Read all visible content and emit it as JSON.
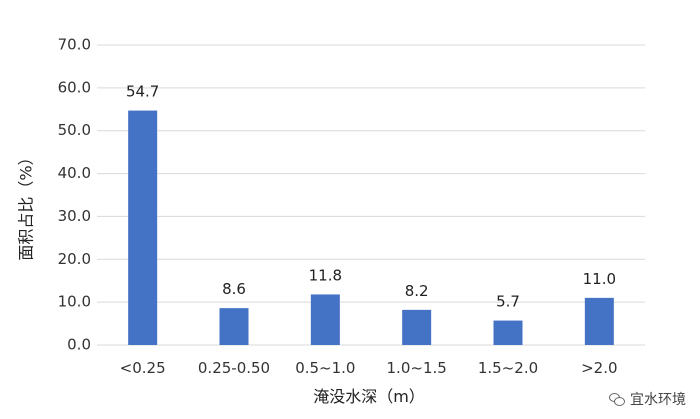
{
  "chart_data": {
    "type": "bar",
    "categories": [
      "<0.25",
      "0.25-0.50",
      "0.5~1.0",
      "1.0~1.5",
      "1.5~2.0",
      ">2.0"
    ],
    "values": [
      54.7,
      8.6,
      11.8,
      8.2,
      5.7,
      11.0
    ],
    "data_labels": [
      "54.7",
      "8.6",
      "11.8",
      "8.2",
      "5.7",
      "11.0"
    ],
    "ylabel": "面积占比（%）",
    "xlabel": "淹没水深（m）",
    "ylim": [
      0,
      70
    ],
    "yticks": [
      "0.0",
      "10.0",
      "20.0",
      "30.0",
      "40.0",
      "50.0",
      "60.0",
      "70.0"
    ],
    "ytick_values": [
      0,
      10,
      20,
      30,
      40,
      50,
      60,
      70
    ],
    "grid": true,
    "bar_color": "#4472C4",
    "grid_color": "#d9d9d9"
  },
  "watermark": {
    "text": "宜水环境",
    "icon": "wechat-icon"
  }
}
